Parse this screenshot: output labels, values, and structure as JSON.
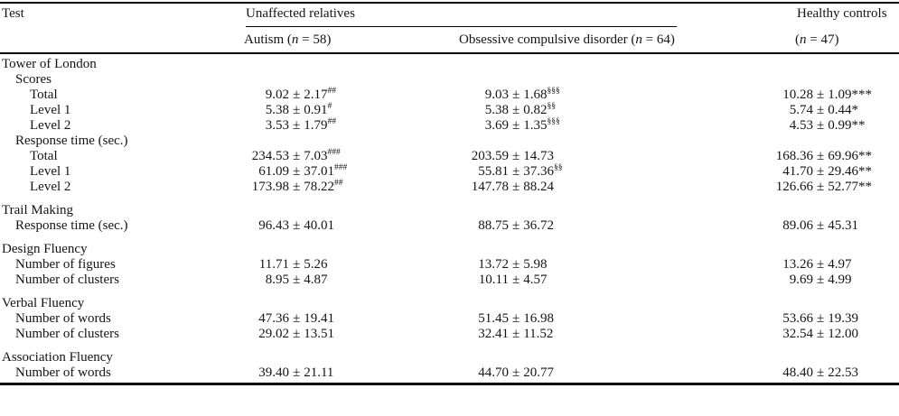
{
  "table": {
    "corner_header": "Test",
    "spanner_header": "Unaffected relatives",
    "right_header": "Healthy controls",
    "pm": "±",
    "sub_headers": [
      {
        "pre": "Autism (",
        "var": "n",
        "post": " = 58)"
      },
      {
        "pre": "Obsessive compulsive disorder (",
        "var": "n",
        "post": " = 64)"
      },
      {
        "pre": "(",
        "var": "n",
        "post": " = 47)"
      }
    ],
    "rows": [
      {
        "label": "Tower of London",
        "indent": 0
      },
      {
        "label": "Scores",
        "indent": 1
      },
      {
        "label": "Total",
        "indent": 2,
        "cells": [
          {
            "v": "9.02",
            "e": "2.17",
            "sup": "##"
          },
          {
            "v": "9.03",
            "e": "1.68",
            "sup": "§§§"
          },
          {
            "v": "10.28",
            "e": "1.09",
            "star": "***"
          }
        ]
      },
      {
        "label": "Level 1",
        "indent": 2,
        "cells": [
          {
            "v": "5.38",
            "e": "0.91",
            "sup": "#"
          },
          {
            "v": "5.38",
            "e": "0.82",
            "sup": "§§"
          },
          {
            "v": "5.74",
            "e": "0.44",
            "star": "*"
          }
        ]
      },
      {
        "label": "Level 2",
        "indent": 2,
        "cells": [
          {
            "v": "3.53",
            "e": "1.79",
            "sup": "##"
          },
          {
            "v": "3.69",
            "e": "1.35",
            "sup": "§§§"
          },
          {
            "v": "4.53",
            "e": "0.99",
            "star": "**"
          }
        ]
      },
      {
        "label": "Response time (sec.)",
        "indent": 1
      },
      {
        "label": "Total",
        "indent": 2,
        "cells": [
          {
            "v": "234.53",
            "e": "7.03",
            "sup": "###"
          },
          {
            "v": "203.59",
            "e": "14.73"
          },
          {
            "v": "168.36",
            "e": "69.96",
            "star": "**"
          }
        ]
      },
      {
        "label": "Level 1",
        "indent": 2,
        "cells": [
          {
            "v": "61.09",
            "e": "37.01",
            "sup": "###"
          },
          {
            "v": "55.81",
            "e": "37.36",
            "sup": "§§"
          },
          {
            "v": "41.70",
            "e": "29.46",
            "star": "**"
          }
        ]
      },
      {
        "label": "Level 2",
        "indent": 2,
        "cells": [
          {
            "v": "173.98",
            "e": "78.22",
            "sup": "##"
          },
          {
            "v": "147.78",
            "e": "88.24"
          },
          {
            "v": "126.66",
            "e": "52.77",
            "star": "**"
          }
        ]
      },
      {
        "spacer": true
      },
      {
        "label": "Trail Making",
        "indent": 0
      },
      {
        "label": "Response time (sec.)",
        "indent": 1,
        "cells": [
          {
            "v": "96.43",
            "e": "40.01"
          },
          {
            "v": "88.75",
            "e": "36.72"
          },
          {
            "v": "89.06",
            "e": "45.31"
          }
        ]
      },
      {
        "spacer": true
      },
      {
        "label": "Design Fluency",
        "indent": 0
      },
      {
        "label": "Number of figures",
        "indent": 1,
        "cells": [
          {
            "v": "11.71",
            "e": "5.26"
          },
          {
            "v": "13.72",
            "e": "5.98"
          },
          {
            "v": "13.26",
            "e": "4.97"
          }
        ]
      },
      {
        "label": "Number of clusters",
        "indent": 1,
        "cells": [
          {
            "v": "8.95",
            "e": "4.87"
          },
          {
            "v": "10.11",
            "e": "4.57"
          },
          {
            "v": "9.69",
            "e": "4.99"
          }
        ]
      },
      {
        "spacer": true
      },
      {
        "label": "Verbal Fluency",
        "indent": 0
      },
      {
        "label": "Number of words",
        "indent": 1,
        "cells": [
          {
            "v": "47.36",
            "e": "19.41"
          },
          {
            "v": "51.45",
            "e": "16.98"
          },
          {
            "v": "53.66",
            "e": "19.39"
          }
        ]
      },
      {
        "label": "Number of clusters",
        "indent": 1,
        "cells": [
          {
            "v": "29.02",
            "e": "13.51"
          },
          {
            "v": "32.41",
            "e": "11.52"
          },
          {
            "v": "32.54",
            "e": "12.00"
          }
        ]
      },
      {
        "spacer": true
      },
      {
        "label": "Association Fluency",
        "indent": 0
      },
      {
        "label": "Number of words",
        "indent": 1,
        "cells": [
          {
            "v": "39.40",
            "e": "21.11"
          },
          {
            "v": "44.70",
            "e": "20.77"
          },
          {
            "v": "48.40",
            "e": "22.53"
          }
        ]
      }
    ]
  }
}
